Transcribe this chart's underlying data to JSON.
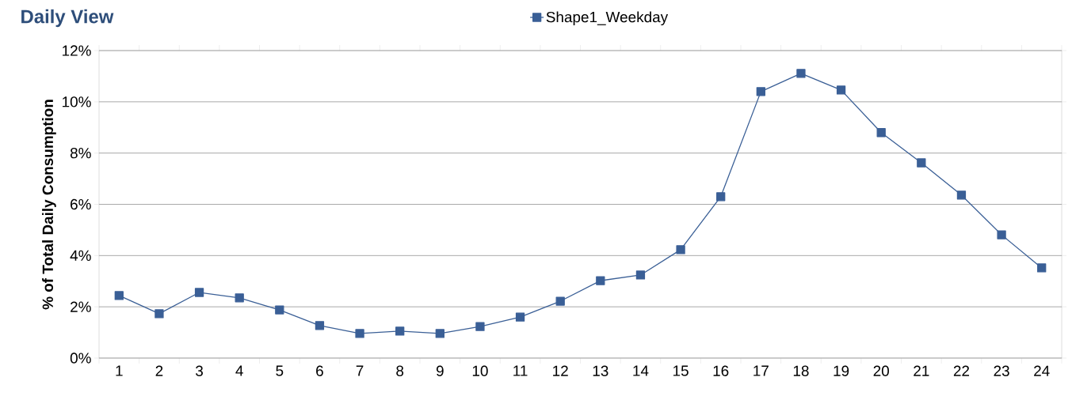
{
  "chart_data": {
    "type": "line",
    "title": "Daily View",
    "ylabel": "% of Total Daily Consumption",
    "categories": [
      "1",
      "2",
      "3",
      "4",
      "5",
      "6",
      "7",
      "8",
      "9",
      "10",
      "11",
      "12",
      "13",
      "14",
      "15",
      "16",
      "17",
      "18",
      "19",
      "20",
      "21",
      "22",
      "23",
      "24"
    ],
    "series": [
      {
        "name": "Shape1_Weekday",
        "color": "#3a5f96",
        "values": [
          2.44,
          1.73,
          2.56,
          2.35,
          1.88,
          1.27,
          0.96,
          1.05,
          0.96,
          1.23,
          1.6,
          2.22,
          3.02,
          3.24,
          4.23,
          6.3,
          10.4,
          11.11,
          10.46,
          8.8,
          7.62,
          6.36,
          4.81,
          3.52
        ]
      }
    ],
    "ylim": [
      0,
      12
    ],
    "yticks": [
      {
        "value": 0,
        "label": "0%"
      },
      {
        "value": 2,
        "label": "2%"
      },
      {
        "value": 4,
        "label": "4%"
      },
      {
        "value": 6,
        "label": "6%"
      },
      {
        "value": 8,
        "label": "8%"
      },
      {
        "value": 10,
        "label": "10%"
      },
      {
        "value": 12,
        "label": "12%"
      }
    ],
    "grid": "y",
    "legend": "top",
    "marker": "square",
    "line_style": "solid"
  }
}
